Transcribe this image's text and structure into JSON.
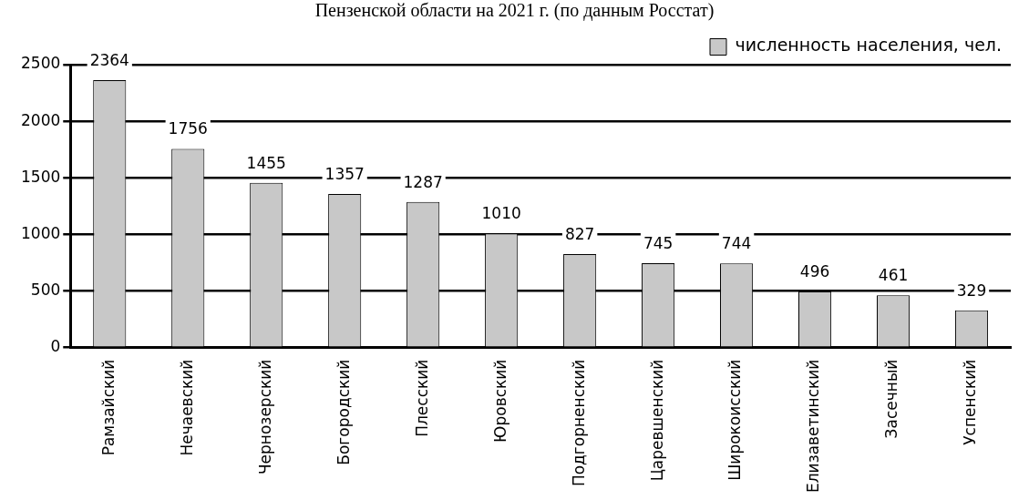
{
  "chart_data": {
    "type": "bar",
    "title": "Пензенской области на 2021 г. (по данным Росстат)",
    "categories": [
      "Рамзайский",
      "Нечаевский",
      "Чернозерский",
      "Богородский",
      "Плесский",
      "Юровский",
      "Подгорненский",
      "Царевшенский",
      "Широкоисский",
      "Елизаветинский",
      "Засечный",
      "Успенский"
    ],
    "series": [
      {
        "name": "численность населения, чел.",
        "color": "#c8c8c8",
        "values": [
          2364,
          1756,
          1455,
          1357,
          1287,
          1010,
          827,
          745,
          744,
          496,
          461,
          329
        ]
      }
    ],
    "ylim": [
      0,
      2500
    ],
    "yticks": [
      0,
      500,
      1000,
      1500,
      2000,
      2500
    ],
    "grid": "y",
    "legend": "top right",
    "data_labels": true
  }
}
